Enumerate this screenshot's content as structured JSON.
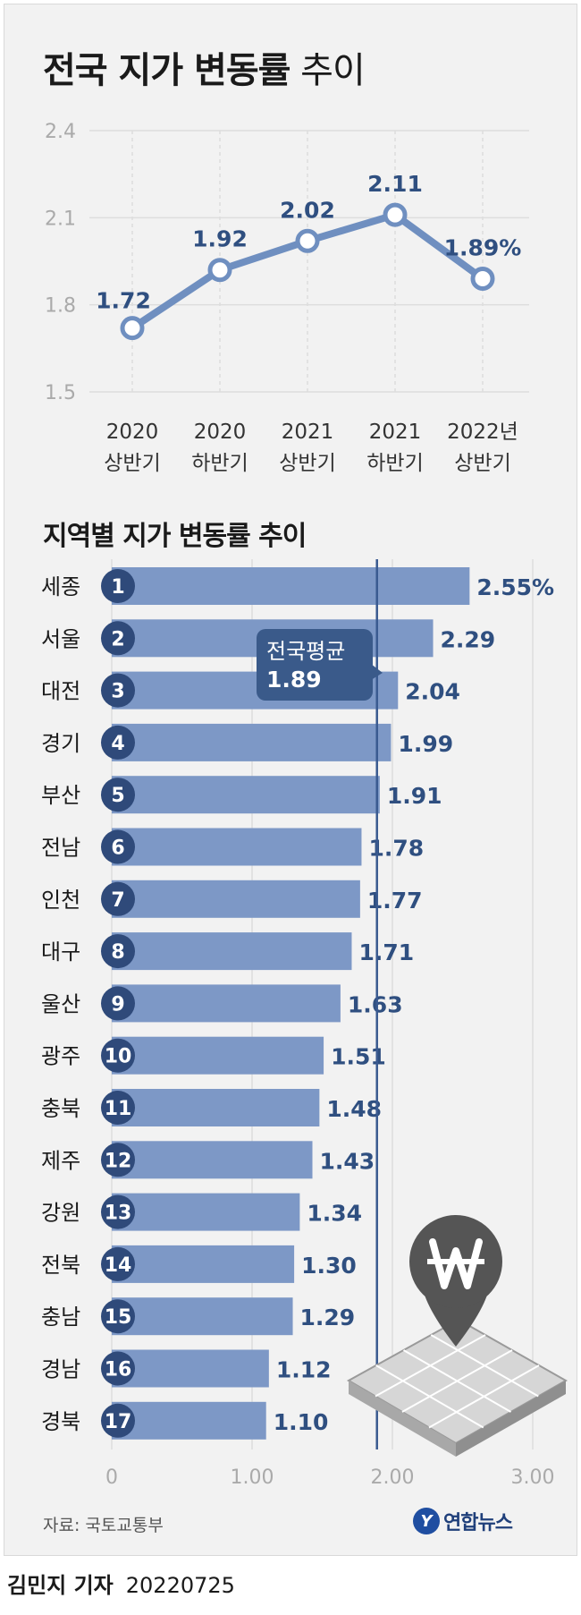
{
  "title": {
    "bold": "전국 지가 변동률",
    "light": "추이"
  },
  "section_title": "지역별 지가 변동률 추이",
  "source": "자료: 국토교통부",
  "logo": {
    "mark": "Y",
    "text": "연합뉴스"
  },
  "credit": {
    "name": "김민지 기자",
    "date": "20220725"
  },
  "colors": {
    "line": "#6f8fc0",
    "label": "#2f4f80",
    "bar": "#7d98c6",
    "badge": "#2f4a7a",
    "avg_line": "#3a5a90",
    "callout": "#3a5a8a",
    "grid": "#dddddd",
    "axis_text": "#aaaaaa",
    "icon": "#555555"
  },
  "icon": "won-location-pin-on-map-icon",
  "chart_data": [
    {
      "type": "line",
      "title": "",
      "categories": [
        [
          "2020",
          "상반기"
        ],
        [
          "2020",
          "하반기"
        ],
        [
          "2021",
          "상반기"
        ],
        [
          "2021",
          "하반기"
        ],
        [
          "2022년",
          "상반기"
        ]
      ],
      "values": [
        1.72,
        1.92,
        2.02,
        2.11,
        1.89
      ],
      "value_labels": [
        "1.72",
        "1.92",
        "2.02",
        "2.11",
        "1.89%"
      ],
      "ylim": [
        1.5,
        2.4
      ],
      "yticks": [
        "1.5",
        "1.8",
        "2.1",
        "2.4"
      ],
      "grid": true
    },
    {
      "type": "bar",
      "orientation": "horizontal",
      "categories": [
        "세종",
        "서울",
        "대전",
        "경기",
        "부산",
        "전남",
        "인천",
        "대구",
        "울산",
        "광주",
        "충북",
        "제주",
        "강원",
        "전북",
        "충남",
        "경남",
        "경북"
      ],
      "ranks": [
        "1",
        "2",
        "3",
        "4",
        "5",
        "6",
        "7",
        "8",
        "9",
        "10",
        "11",
        "12",
        "13",
        "14",
        "15",
        "16",
        "17"
      ],
      "values": [
        2.55,
        2.29,
        2.04,
        1.99,
        1.91,
        1.78,
        1.77,
        1.71,
        1.63,
        1.51,
        1.48,
        1.43,
        1.34,
        1.3,
        1.29,
        1.12,
        1.1
      ],
      "value_labels": [
        "2.55%",
        "2.29",
        "2.04",
        "1.99",
        "1.91",
        "1.78",
        "1.77",
        "1.71",
        "1.63",
        "1.51",
        "1.48",
        "1.43",
        "1.34",
        "1.30",
        "1.29",
        "1.12",
        "1.10"
      ],
      "xlim": [
        0,
        3
      ],
      "xticks": [
        "0",
        "1.00",
        "2.00",
        "3.00"
      ],
      "reference": {
        "label": "전국평균",
        "value": 1.89,
        "value_label": "1.89"
      },
      "grid": true
    }
  ]
}
